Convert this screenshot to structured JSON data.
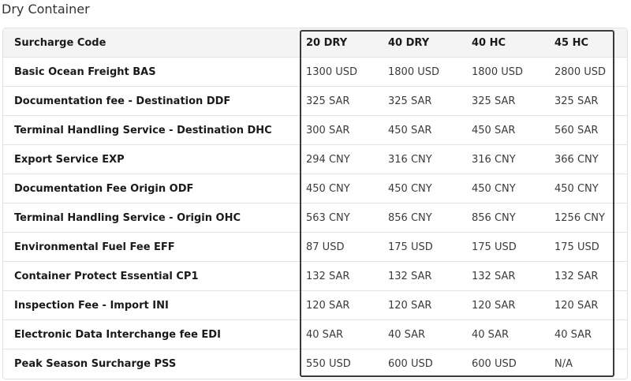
{
  "title": "Dry Container",
  "header": {
    "code": "Surcharge Code",
    "cols": [
      "20 DRY",
      "40 DRY",
      "40 HC",
      "45 HC"
    ]
  },
  "rows": [
    {
      "code": "Basic Ocean Freight BAS",
      "values": [
        "1300 USD",
        "1800 USD",
        "1800 USD",
        "2800 USD"
      ]
    },
    {
      "code": "Documentation fee - Destination DDF",
      "values": [
        "325 SAR",
        "325 SAR",
        "325 SAR",
        "325 SAR"
      ]
    },
    {
      "code": "Terminal Handling Service - Destination DHC",
      "values": [
        "300 SAR",
        "450 SAR",
        "450 SAR",
        "560 SAR"
      ]
    },
    {
      "code": "Export Service EXP",
      "values": [
        "294 CNY",
        "316 CNY",
        "316 CNY",
        "366 CNY"
      ]
    },
    {
      "code": "Documentation Fee Origin ODF",
      "values": [
        "450 CNY",
        "450 CNY",
        "450 CNY",
        "450 CNY"
      ]
    },
    {
      "code": "Terminal Handling Service - Origin OHC",
      "values": [
        "563 CNY",
        "856 CNY",
        "856 CNY",
        "1256 CNY"
      ]
    },
    {
      "code": "Environmental Fuel Fee EFF",
      "values": [
        "87 USD",
        "175 USD",
        "175 USD",
        "175 USD"
      ]
    },
    {
      "code": "Container Protect Essential CP1",
      "values": [
        "132 SAR",
        "132 SAR",
        "132 SAR",
        "132 SAR"
      ]
    },
    {
      "code": "Inspection Fee - Import INI",
      "values": [
        "120 SAR",
        "120 SAR",
        "120 SAR",
        "120 SAR"
      ]
    },
    {
      "code": "Electronic Data Interchange fee EDI",
      "values": [
        "40 SAR",
        "40 SAR",
        "40 SAR",
        "40 SAR"
      ]
    },
    {
      "code": "Peak Season Surcharge PSS",
      "values": [
        "550 USD",
        "600 USD",
        "600 USD",
        "N/A"
      ]
    }
  ]
}
